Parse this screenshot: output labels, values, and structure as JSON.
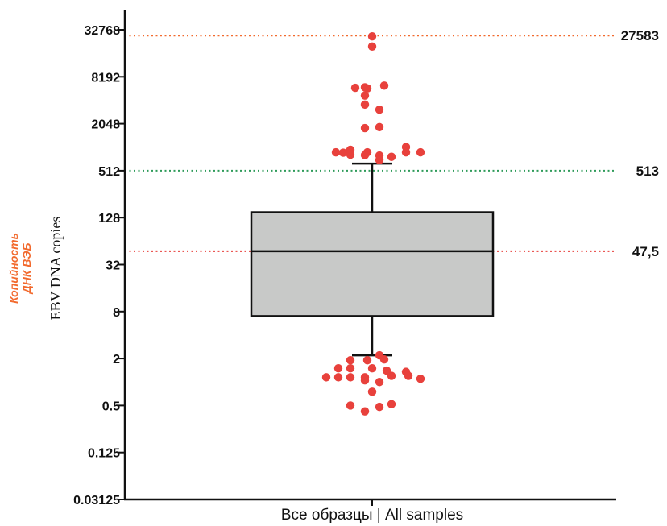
{
  "chart_data": {
    "type": "box",
    "y_scale": "log2",
    "ylim": [
      0.03125,
      65536
    ],
    "y_ticks": [
      {
        "value": 0.03125,
        "label": "0.03125"
      },
      {
        "value": 0.125,
        "label": "0.125"
      },
      {
        "value": 0.5,
        "label": "0.5"
      },
      {
        "value": 2,
        "label": "2"
      },
      {
        "value": 8,
        "label": "8"
      },
      {
        "value": 32,
        "label": "32"
      },
      {
        "value": 128,
        "label": "128"
      },
      {
        "value": 512,
        "label": "512"
      },
      {
        "value": 2048,
        "label": "2048"
      },
      {
        "value": 8192,
        "label": "8192"
      },
      {
        "value": 32768,
        "label": "32768"
      }
    ],
    "ylabel_ru_line1": "Копийность",
    "ylabel_ru_line2": "ДНК ВЭБ",
    "ylabel_en": "EBV DNA copies",
    "category": "Все образцы | All samples",
    "box": {
      "q1": 7,
      "median": 47.5,
      "q3": 150,
      "whisker_low": 2.2,
      "whisker_high": 630
    },
    "reference_lines": [
      {
        "value": 27583,
        "label": "27583",
        "color": "#f26a2e"
      },
      {
        "value": 513,
        "label": "513",
        "color": "#2e9b5a"
      },
      {
        "value": 47.5,
        "label": "47,5",
        "color": "#e8413c"
      }
    ],
    "outliers": [
      {
        "y": 27000,
        "x": 0.0
      },
      {
        "y": 20000,
        "x": 0.0
      },
      {
        "y": 5900,
        "x": -0.07
      },
      {
        "y": 6000,
        "x": -0.03
      },
      {
        "y": 5800,
        "x": -0.02
      },
      {
        "y": 6300,
        "x": 0.05
      },
      {
        "y": 4700,
        "x": -0.03
      },
      {
        "y": 3600,
        "x": -0.03
      },
      {
        "y": 3100,
        "x": 0.03
      },
      {
        "y": 1800,
        "x": -0.03
      },
      {
        "y": 1850,
        "x": 0.03
      },
      {
        "y": 1030,
        "x": 0.14
      },
      {
        "y": 950,
        "x": -0.09
      },
      {
        "y": 880,
        "x": -0.15
      },
      {
        "y": 870,
        "x": -0.12
      },
      {
        "y": 880,
        "x": -0.02
      },
      {
        "y": 880,
        "x": 0.14
      },
      {
        "y": 880,
        "x": 0.2
      },
      {
        "y": 820,
        "x": -0.09
      },
      {
        "y": 810,
        "x": -0.03
      },
      {
        "y": 800,
        "x": 0.03
      },
      {
        "y": 770,
        "x": 0.08
      },
      {
        "y": 700,
        "x": 0.03
      },
      {
        "y": 2.2,
        "x": 0.03
      },
      {
        "y": 1.9,
        "x": -0.09
      },
      {
        "y": 1.9,
        "x": -0.02
      },
      {
        "y": 1.95,
        "x": 0.05
      },
      {
        "y": 1.5,
        "x": -0.14
      },
      {
        "y": 1.5,
        "x": -0.09
      },
      {
        "y": 1.5,
        "x": 0.0
      },
      {
        "y": 1.4,
        "x": 0.06
      },
      {
        "y": 1.35,
        "x": 0.14
      },
      {
        "y": 1.2,
        "x": 0.15
      },
      {
        "y": 1.15,
        "x": -0.19
      },
      {
        "y": 1.15,
        "x": -0.14
      },
      {
        "y": 1.15,
        "x": -0.09
      },
      {
        "y": 1.15,
        "x": -0.03
      },
      {
        "y": 1.2,
        "x": 0.08
      },
      {
        "y": 1.1,
        "x": 0.2
      },
      {
        "y": 1.05,
        "x": -0.03
      },
      {
        "y": 1.0,
        "x": 0.03
      },
      {
        "y": 0.75,
        "x": 0.0
      },
      {
        "y": 0.52,
        "x": 0.08
      },
      {
        "y": 0.5,
        "x": -0.09
      },
      {
        "y": 0.48,
        "x": 0.03
      },
      {
        "y": 0.42,
        "x": -0.03
      }
    ],
    "point_color": "#e8413c",
    "box_fill": "#c8c9c8"
  }
}
